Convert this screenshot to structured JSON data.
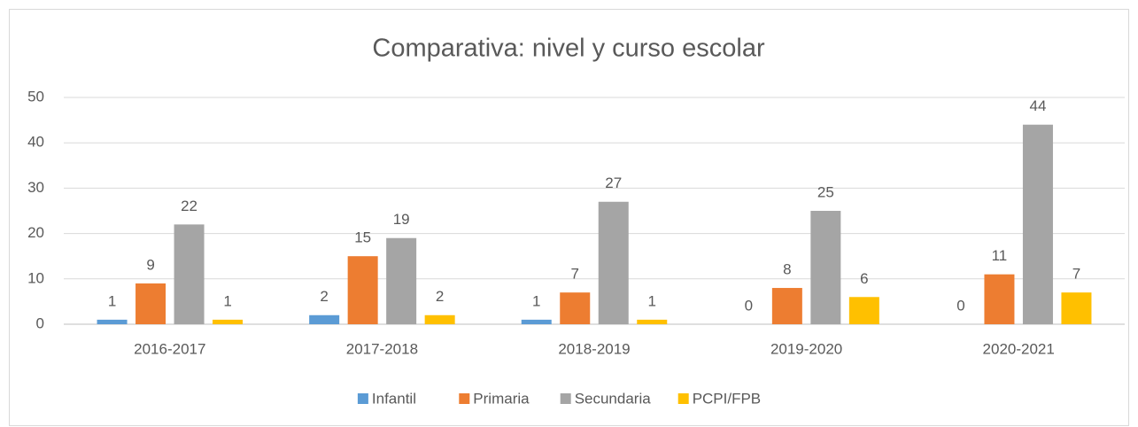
{
  "chart_data": {
    "type": "bar",
    "title": "Comparativa: nivel y curso escolar",
    "categories": [
      "2016-2017",
      "2017-2018",
      "2018-2019",
      "2019-2020",
      "2020-2021"
    ],
    "series": [
      {
        "name": "Infantil",
        "color": "#5b9bd5",
        "values": [
          1,
          2,
          1,
          0,
          0
        ]
      },
      {
        "name": "Primaria",
        "color": "#ed7d31",
        "values": [
          9,
          15,
          7,
          8,
          11
        ]
      },
      {
        "name": "Secundaria",
        "color": "#a5a5a5",
        "values": [
          22,
          19,
          27,
          25,
          44
        ]
      },
      {
        "name": "PCPI/FPB",
        "color": "#ffc000",
        "values": [
          1,
          2,
          1,
          6,
          7
        ]
      }
    ],
    "ylim": [
      0,
      50
    ],
    "yticks": [
      0,
      10,
      20,
      30,
      40,
      50
    ],
    "grid": true,
    "legend": "bottom"
  }
}
